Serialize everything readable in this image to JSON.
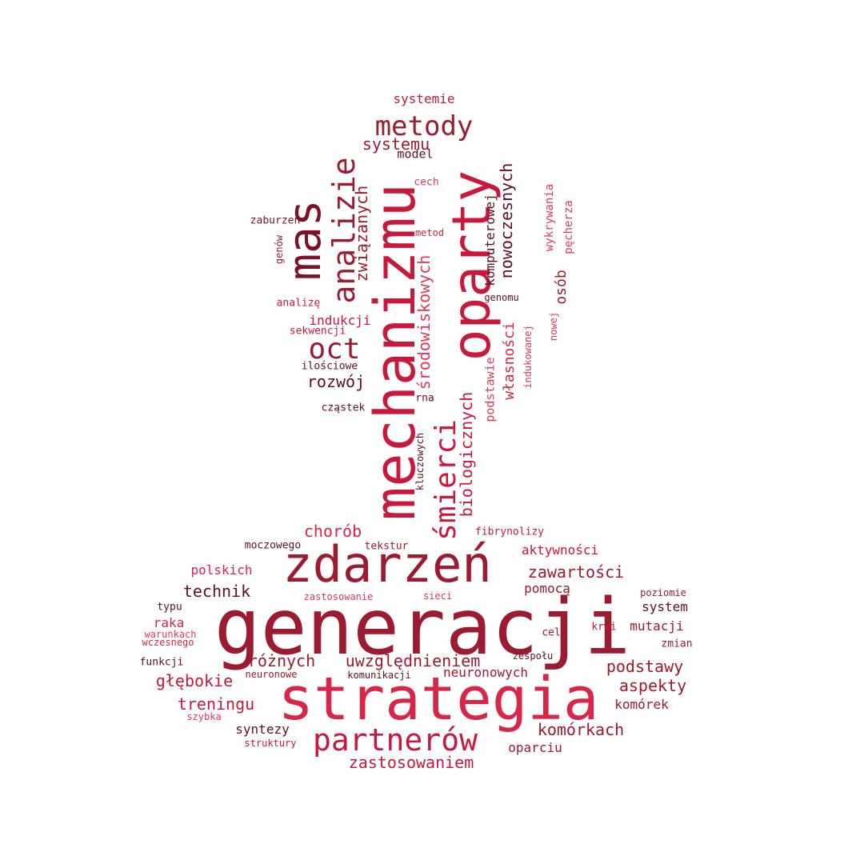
{
  "words": [
    "generacji",
    "strategia",
    "zdarzeń",
    "mechanizmu",
    "oparty",
    "mas",
    "partnerów",
    "analizie",
    "metody",
    "oct",
    "śmierci",
    "zastosowaniem",
    "uwzględnieniem",
    "komórkach",
    "podstawy",
    "aspekty",
    "zawartości",
    "treningu",
    "technik",
    "różnych",
    "głębokie",
    "chorób",
    "rozwój",
    "nowoczesnych",
    "biologicznych",
    "środowiskowych",
    "związanych",
    "systemu",
    "systemie",
    "własności",
    "osób",
    "komputerowej",
    "indukcji",
    "pomocą",
    "aktywności",
    "neuronowych",
    "mutacji",
    "syntezy",
    "oparciu",
    "komórek",
    "system",
    "podstawie",
    "model",
    "polskich",
    "raka",
    "wykrywania",
    "pęcherza",
    "moczowego",
    "fibrynolizy",
    "tekstur",
    "kluczowych",
    "cech",
    "metod",
    "genomu",
    "zaburzeń",
    "genów",
    "analizę",
    "sekwencji",
    "ilościowe",
    "cząstek",
    "rna",
    "indukowanej",
    "nowej",
    "zastosowanie",
    "sieci",
    "poziomie",
    "typu",
    "warunkach",
    "wczesnego",
    "funkcji",
    "celu",
    "krwi",
    "zmian",
    "zespołu",
    "neuronowe",
    "komunikacji",
    "szybka",
    "struktury"
  ]
}
